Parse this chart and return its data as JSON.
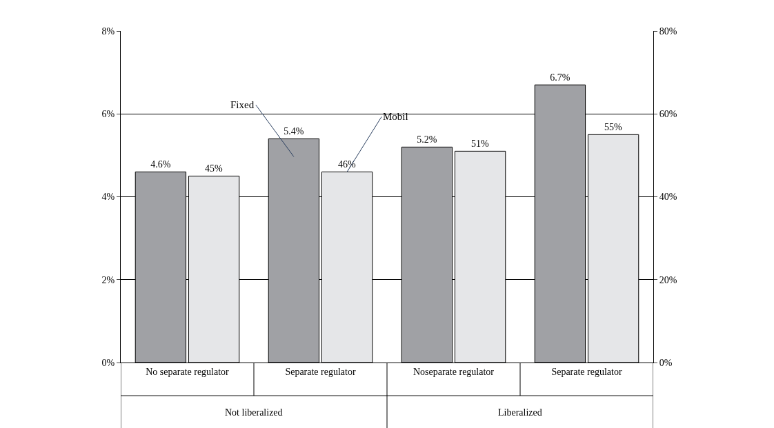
{
  "chart_data": {
    "type": "bar",
    "categories": [
      "No separate regulator",
      "Separate regulator",
      "Noseparate regulator",
      "Separate regulator"
    ],
    "series": [
      {
        "name": "Fixed",
        "color": "#a0a1a5",
        "values": [
          4.6,
          5.4,
          5.2,
          6.7
        ],
        "value_labels": [
          "4.6%",
          "5.4%",
          "5.2%",
          "6.7%"
        ]
      },
      {
        "name": "Mobil",
        "color": "#e5e6e8",
        "axis": "y2",
        "values": [
          45,
          46,
          51,
          55
        ],
        "value_labels": [
          "45%",
          "46%",
          "51%",
          "55%"
        ]
      }
    ],
    "annotations": [
      "Not liberalized",
      "Liberalized"
    ],
    "ylim": [
      0,
      8
    ],
    "yticks": [
      {
        "value": 0,
        "label": "0%"
      },
      {
        "value": 2,
        "label": "2%"
      },
      {
        "value": 4,
        "label": "4%"
      },
      {
        "value": 6,
        "label": "6%"
      },
      {
        "value": 8,
        "label": "8%"
      }
    ],
    "y2lim": [
      0,
      80
    ],
    "y2ticks": [
      {
        "value": 0,
        "label": "0%"
      },
      {
        "value": 20,
        "label": "20%"
      },
      {
        "value": 40,
        "label": "40%"
      },
      {
        "value": 60,
        "label": "60%"
      },
      {
        "value": 80,
        "label": "80%"
      }
    ],
    "grid": "y",
    "legend": false
  }
}
